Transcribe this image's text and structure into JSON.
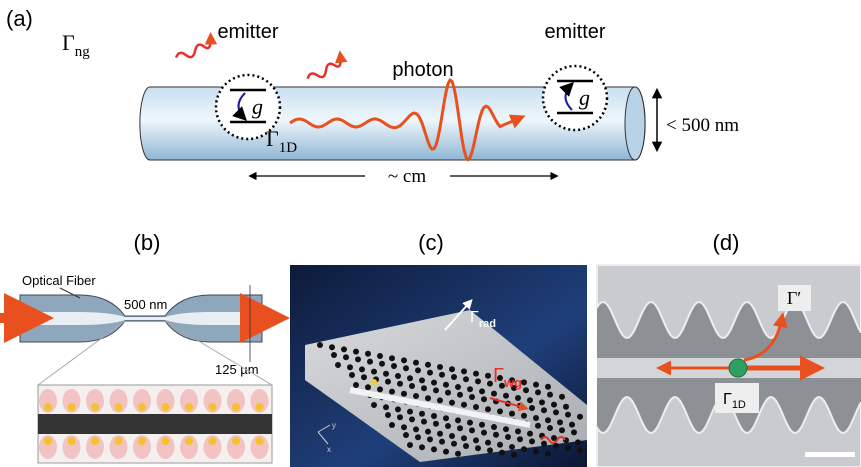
{
  "panel_a": {
    "label": "(a)",
    "emitter_left": {
      "label": "emitter",
      "coupling": "g"
    },
    "emitter_right": {
      "label": "emitter",
      "coupling": "g"
    },
    "photon": "photon",
    "loss_rate": {
      "symbol": "Γ",
      "subscript": "ng"
    },
    "guided_rate": {
      "symbol": "Γ",
      "subscript": "1D"
    },
    "diameter": "< 500 nm",
    "length": "~ cm"
  },
  "panel_b": {
    "label": "(b)",
    "fiber": "Optical Fiber",
    "waist": "500 nm",
    "outer_diameter": "125 µm"
  },
  "panel_c": {
    "label": "(c)",
    "radiated_rate": {
      "symbol": "Γ",
      "subscript": "rad"
    },
    "guided_rate": {
      "symbol": "Γ",
      "subscript": "wg"
    },
    "axis_y": "y",
    "axis_x": "x"
  },
  "panel_d": {
    "label": "(d)",
    "loss_rate": "Γ′",
    "guided_rate": {
      "symbol": "Γ",
      "subscript": "1D"
    }
  }
}
